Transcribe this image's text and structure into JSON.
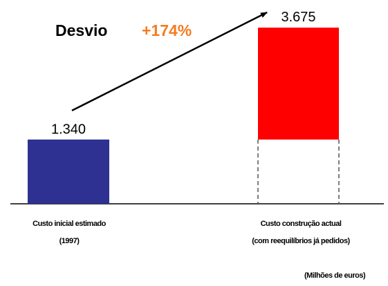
{
  "chart_data": {
    "type": "bar",
    "categories": [
      "Custo inicial estimado\n(1997)",
      "Custo construção actual\n(com reequilíbrios já pedidos)"
    ],
    "values": [
      1340,
      3675
    ],
    "value_labels": [
      "1.340",
      "3.675"
    ],
    "colors": [
      "#2e3192",
      "#ff0000"
    ],
    "ylim": [
      0,
      4000
    ],
    "annotations": {
      "label": "Desvio",
      "change": "+174%"
    },
    "unit_note": "(Milhões de euros)"
  }
}
